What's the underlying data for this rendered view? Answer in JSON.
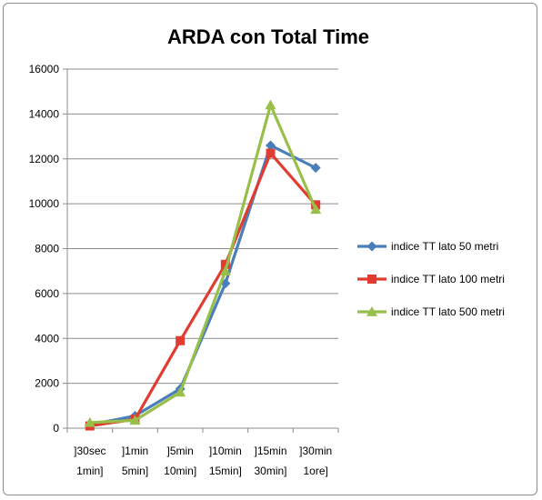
{
  "chart_data": {
    "type": "line",
    "title": "ARDA con Total Time",
    "xlabel": "",
    "ylabel": "",
    "categories": [
      [
        "]30sec",
        "1min]"
      ],
      [
        "]1min",
        "5min]"
      ],
      [
        "]5min",
        "10min]"
      ],
      [
        "]10min",
        "15min]"
      ],
      [
        "]15min",
        "30min]"
      ],
      [
        "]30min",
        "1ore]"
      ]
    ],
    "ylim": [
      0,
      16000
    ],
    "yticks": [
      0,
      2000,
      4000,
      6000,
      8000,
      10000,
      12000,
      14000,
      16000
    ],
    "grid": true,
    "legend_position": "right",
    "series": [
      {
        "name": "indice TT lato 50 metri",
        "color": "#4a7ebb",
        "marker": "diamond",
        "values": [
          150,
          550,
          1750,
          6450,
          12600,
          11600
        ]
      },
      {
        "name": "indice TT lato 100 metri",
        "color": "#e03c31",
        "marker": "square",
        "values": [
          100,
          400,
          3900,
          7300,
          12250,
          9950
        ]
      },
      {
        "name": "indice TT lato 500 metri",
        "color": "#98bf4a",
        "marker": "triangle",
        "values": [
          250,
          350,
          1600,
          7000,
          14400,
          9750
        ]
      }
    ]
  }
}
